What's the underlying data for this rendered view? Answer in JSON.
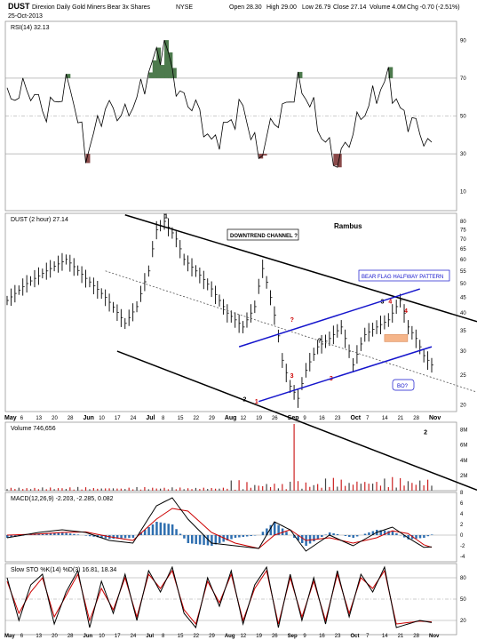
{
  "header": {
    "symbol": "DUST",
    "name": "Direxion Daily Gold Miners Bear 3x Shares",
    "exchange": "NYSE",
    "date": "25-Oct-2013",
    "open": "Open 28.30",
    "high": "High 29.00",
    "low": "Low 26.79",
    "close": "Close 27.14",
    "volume": "Volume 4.0M",
    "change": "Chg -0.70 (-2.51%)"
  },
  "colors": {
    "price": "#000000",
    "channel": "#000000",
    "flag": "#1515cc",
    "annotation_red": "#cc0000",
    "volume_up": "#444444",
    "volume_down": "#cc2222",
    "macd_line": "#000000",
    "signal_line": "#cc0000",
    "histogram": "#2f6fb0",
    "rsi_overbought_fill": "#4d7a4d",
    "rsi_oversold_fill": "#8a4a4a",
    "box_fill": "#f5b58a"
  },
  "chart_data": [
    {
      "type": "line",
      "panel": "rsi",
      "label": "RSI(14) 32.13",
      "ylim": [
        0,
        100
      ],
      "yticks": [
        10,
        30,
        50,
        70,
        90
      ],
      "reference_lines": [
        30,
        50,
        70
      ],
      "x_index": [
        0,
        5,
        10,
        16,
        20,
        25,
        30,
        34,
        37,
        40,
        44,
        48,
        52,
        56,
        60,
        64,
        67,
        70,
        74,
        77,
        80,
        84,
        87,
        90,
        94,
        97,
        100,
        104,
        108
      ],
      "values": [
        58,
        65,
        52,
        67,
        30,
        55,
        50,
        63,
        78,
        88,
        60,
        55,
        35,
        45,
        55,
        28,
        44,
        52,
        66,
        58,
        40,
        25,
        38,
        50,
        62,
        70,
        52,
        45,
        32
      ]
    },
    {
      "type": "line",
      "panel": "price",
      "label": "DUST (2 hour) 27.14",
      "yscale": "log",
      "ylim": [
        19,
        85
      ],
      "yticks": [
        20,
        25,
        30,
        35,
        40,
        45,
        50,
        55,
        60,
        65,
        70,
        75,
        80
      ],
      "x_labels": [
        "May",
        "6",
        "13",
        "20",
        "28",
        "Jun",
        "10",
        "17",
        "24",
        "Jul",
        "8",
        "15",
        "22",
        "29",
        "Aug",
        "12",
        "19",
        "26",
        "Sep",
        "9",
        "16",
        "23",
        "Oct",
        "7",
        "14",
        "21",
        "28",
        "Nov"
      ],
      "x_index": [
        0,
        5,
        10,
        15,
        20,
        25,
        30,
        33,
        36,
        38,
        40,
        43,
        45,
        48,
        52,
        56,
        60,
        63,
        65,
        67,
        70,
        72,
        74,
        76,
        79,
        82,
        85,
        88,
        91,
        94,
        97,
        100,
        102,
        104,
        106,
        108
      ],
      "values": [
        44,
        50,
        55,
        60,
        52,
        45,
        37,
        42,
        55,
        75,
        80,
        70,
        60,
        55,
        48,
        40,
        36,
        42,
        56,
        45,
        28,
        23,
        21,
        26,
        31,
        33,
        36,
        27,
        34,
        36,
        38,
        44,
        36,
        33,
        29,
        27
      ],
      "annotations": {
        "title": "Rambus",
        "downtrend_label": "DOWNTREND CHANNEL ?",
        "flag_label": "BEAR FLAG HALFWAY PATTERN",
        "bo_label": "BO?",
        "points": [
          "1",
          "2",
          "1",
          "2",
          "3",
          "?",
          "?",
          "3",
          "3",
          "4",
          "4"
        ]
      }
    },
    {
      "type": "bar",
      "panel": "volume",
      "label": "Volume 746,656",
      "yticks": [
        "2M",
        "4M",
        "6M",
        "8M"
      ],
      "ylim": [
        0,
        9
      ],
      "spike_index": 73,
      "spike_value": 9.5
    },
    {
      "type": "line",
      "panel": "macd",
      "label": "MACD(12,26,9) -2.203, -2.285, 0.082",
      "ylim": [
        -5,
        8
      ],
      "yticks": [
        -4,
        -2,
        0,
        2,
        4,
        6,
        8
      ],
      "x_index": [
        0,
        8,
        14,
        20,
        26,
        32,
        38,
        42,
        46,
        52,
        58,
        64,
        68,
        72,
        76,
        82,
        88,
        94,
        98,
        102,
        106,
        108
      ],
      "macd": [
        -0.5,
        0.5,
        1,
        0.5,
        -1,
        -1.5,
        5.5,
        7,
        3,
        -1.5,
        -2,
        -2.5,
        2.5,
        1,
        -3,
        0,
        -2,
        0.5,
        1.5,
        -0.5,
        -2.3,
        -2.2
      ],
      "signal": [
        0,
        0.2,
        0.5,
        0.6,
        -0.3,
        -1,
        3,
        5,
        4.5,
        0.5,
        -1.5,
        -2.5,
        0,
        1,
        -1,
        -0.5,
        -1.5,
        -0.5,
        0.8,
        0.3,
        -1.8,
        -2.3
      ]
    },
    {
      "type": "line",
      "panel": "stochastic",
      "label": "Slow STO %K(14) %D(3) 16.81, 18.34",
      "ylim": [
        0,
        100
      ],
      "yticks": [
        20,
        50,
        80
      ],
      "reference_lines": [
        20,
        50,
        80
      ],
      "x_index": [
        0,
        3,
        6,
        9,
        12,
        15,
        18,
        21,
        24,
        27,
        30,
        33,
        36,
        39,
        42,
        45,
        48,
        51,
        54,
        57,
        60,
        63,
        66,
        69,
        72,
        75,
        78,
        81,
        84,
        87,
        90,
        93,
        96,
        99,
        102,
        105,
        108
      ],
      "k": [
        80,
        20,
        70,
        85,
        15,
        60,
        90,
        10,
        75,
        30,
        85,
        20,
        90,
        60,
        95,
        30,
        10,
        80,
        40,
        90,
        15,
        70,
        95,
        10,
        85,
        20,
        80,
        15,
        90,
        25,
        85,
        60,
        95,
        10,
        15,
        20,
        17
      ],
      "d": [
        75,
        30,
        60,
        80,
        25,
        55,
        85,
        20,
        65,
        35,
        80,
        25,
        85,
        65,
        90,
        35,
        15,
        75,
        45,
        85,
        20,
        65,
        90,
        15,
        80,
        25,
        75,
        20,
        85,
        30,
        80,
        65,
        90,
        15,
        17,
        19,
        18
      ]
    }
  ]
}
